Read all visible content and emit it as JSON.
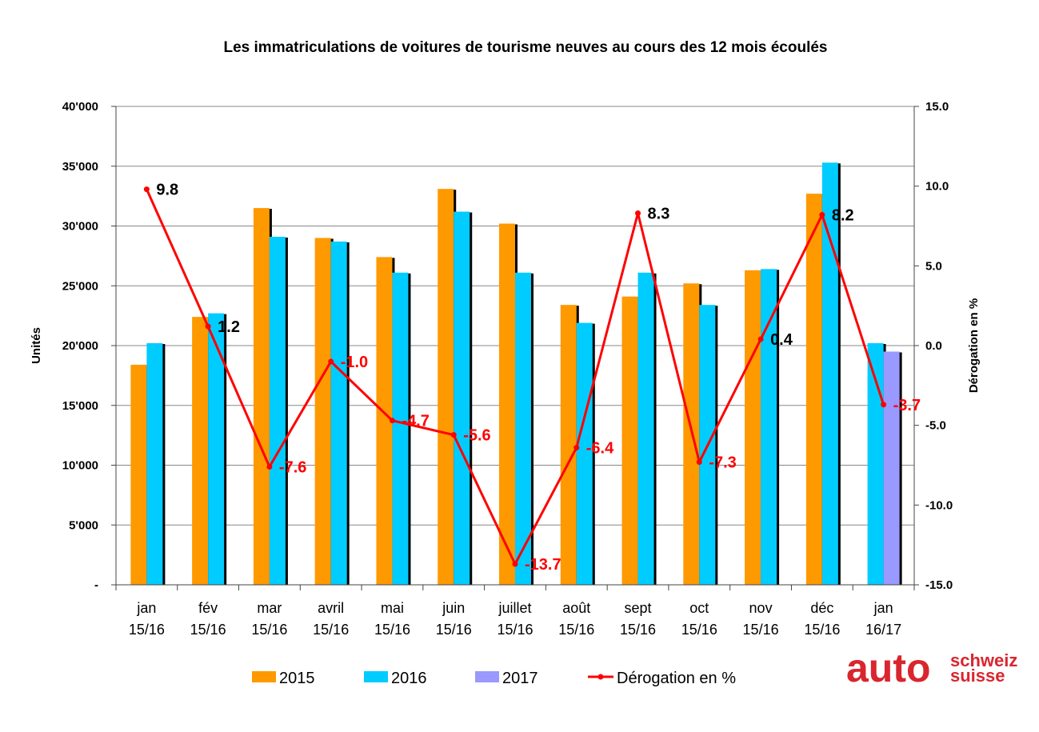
{
  "chart_data": {
    "type": "bar",
    "title": "Les immatriculations de voitures de tourisme neuves au cours des 12 mois écoulés",
    "ylabel": "Unités",
    "y2label": "Dérogation en %",
    "ylim": [
      0,
      40000
    ],
    "y2lim": [
      -15,
      15
    ],
    "yticks": [
      "-",
      "5'000",
      "10'000",
      "15'000",
      "20'000",
      "25'000",
      "30'000",
      "35'000",
      "40'000"
    ],
    "y2ticks": [
      "-15.0",
      "-10.0",
      "-5.0",
      "0.0",
      "5.0",
      "10.0",
      "15.0"
    ],
    "grid": true,
    "legend_position": "bottom",
    "categories": [
      [
        "jan",
        "15/16"
      ],
      [
        "fév",
        "15/16"
      ],
      [
        "mar",
        "15/16"
      ],
      [
        "avril",
        "15/16"
      ],
      [
        "mai",
        "15/16"
      ],
      [
        "juin",
        "15/16"
      ],
      [
        "juillet",
        "15/16"
      ],
      [
        "août",
        "15/16"
      ],
      [
        "sept",
        "15/16"
      ],
      [
        "oct",
        "15/16"
      ],
      [
        "nov",
        "15/16"
      ],
      [
        "déc",
        "15/16"
      ],
      [
        "jan",
        "16/17"
      ]
    ],
    "series": [
      {
        "name": "2015",
        "color": "#ff9900",
        "values": [
          18400,
          22400,
          31500,
          29000,
          27400,
          33100,
          30200,
          23400,
          24100,
          25200,
          26300,
          32700,
          null
        ]
      },
      {
        "name": "2016",
        "color": "#00ccff",
        "values": [
          20200,
          22700,
          29100,
          28700,
          26100,
          31200,
          26100,
          21900,
          26100,
          23400,
          26400,
          35300,
          20200
        ]
      },
      {
        "name": "2017",
        "color": "#9999ff",
        "values": [
          null,
          null,
          null,
          null,
          null,
          null,
          null,
          null,
          null,
          null,
          null,
          null,
          19500
        ]
      }
    ],
    "line_series": {
      "name": "Dérogation en %",
      "color": "#ff0000",
      "values": [
        9.8,
        1.2,
        -7.6,
        -1.0,
        -4.7,
        -5.6,
        -13.7,
        -6.4,
        8.3,
        -7.3,
        0.4,
        8.2,
        -3.7
      ],
      "labels": [
        "9.8",
        "1.2",
        "-7.6",
        "-1.0",
        "-4.7",
        "-5.6",
        "-13.7",
        "-6.4",
        "8.3",
        "-7.3",
        "0.4",
        "8.2",
        "-3.7"
      ],
      "label_colors": [
        "#000000",
        "#000000",
        "#ff0000",
        "#ff0000",
        "#ff0000",
        "#ff0000",
        "#ff0000",
        "#ff0000",
        "#000000",
        "#ff0000",
        "#000000",
        "#000000",
        "#ff0000"
      ]
    }
  },
  "logo": {
    "main": "auto",
    "line1": "schweiz",
    "line2": "suisse",
    "color": "#d9262e"
  }
}
